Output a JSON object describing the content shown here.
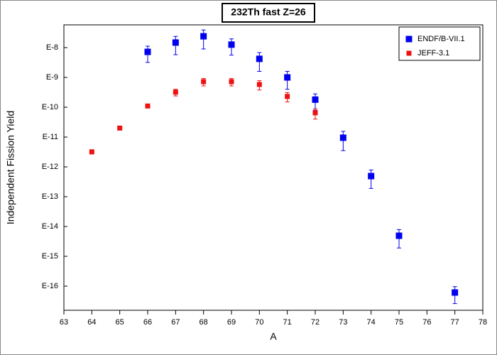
{
  "chart_data": {
    "type": "scatter",
    "title": "232Th fast Z=26",
    "x_label": "A",
    "y_label": "Independent Fission Yield",
    "log_y": true,
    "legend": "top-right",
    "xlim": [
      63,
      78
    ],
    "xticks": [
      63,
      64,
      65,
      66,
      67,
      68,
      69,
      70,
      71,
      72,
      73,
      74,
      75,
      76,
      77,
      78
    ],
    "ylim": [
      1.55e-17,
      5.8e-08
    ],
    "yticks": [
      {
        "value": 1e-08,
        "label": "E-8"
      },
      {
        "value": 1e-09,
        "label": "E-9"
      },
      {
        "value": 1e-10,
        "label": "E-10"
      },
      {
        "value": 1e-11,
        "label": "E-11"
      },
      {
        "value": 1e-12,
        "label": "E-12"
      },
      {
        "value": 1e-13,
        "label": "E-13"
      },
      {
        "value": 1e-14,
        "label": "E-14"
      },
      {
        "value": 1e-15,
        "label": "E-15"
      },
      {
        "value": 1e-16,
        "label": "E-16"
      }
    ],
    "series": [
      {
        "name": "ENDF/B-VII.1",
        "color": "#0000ee",
        "marker_size": 9,
        "x": [
          66,
          67,
          68,
          69,
          70,
          71,
          72,
          73,
          74,
          75,
          77
        ],
        "values": [
          7.2e-09,
          1.48e-08,
          2.4e-08,
          1.26e-08,
          4.2e-09,
          1e-09,
          1.8e-10,
          9.5e-12,
          4.9e-13,
          4.9e-15,
          6.1e-17
        ],
        "errors": [
          4e-09,
          9e-09,
          1.5e-08,
          7e-09,
          2.6e-09,
          6e-10,
          1e-10,
          6e-12,
          3e-13,
          3e-15,
          3.5e-17
        ]
      },
      {
        "name": "JEFF-3.1",
        "color": "#ee1111",
        "marker_size": 7,
        "x": [
          64,
          65,
          66,
          67,
          68,
          69,
          70,
          71,
          72
        ],
        "values": [
          3.2e-12,
          2e-11,
          1.1e-10,
          3.2e-10,
          7.2e-10,
          7.2e-10,
          5.8e-10,
          2.3e-10,
          6.5e-11
        ],
        "errors": [
          5e-13,
          2e-12,
          1.5e-11,
          8e-11,
          2e-10,
          2e-10,
          2e-10,
          8e-11,
          2.5e-11
        ]
      }
    ]
  }
}
